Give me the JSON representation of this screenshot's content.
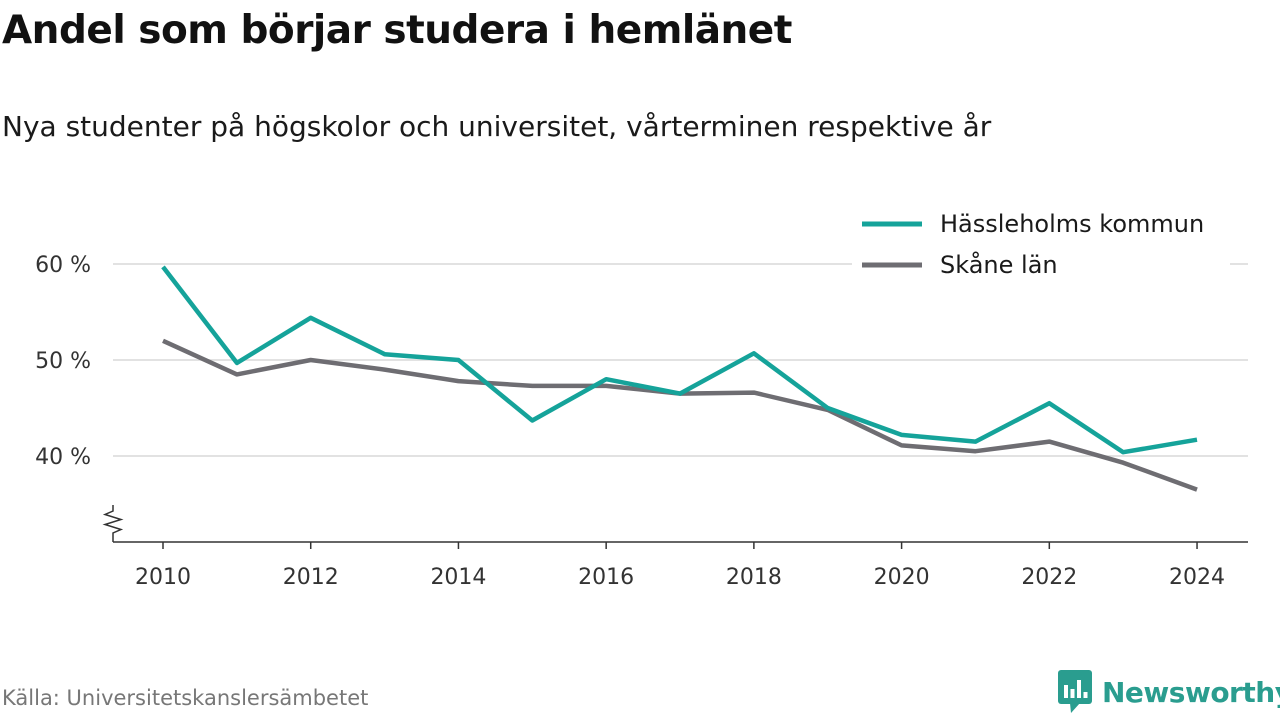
{
  "header": {
    "title": "Andel som börjar studera i hemlänet",
    "subtitle": "Nya studenter på högskolor och universitet, vårterminen respektive år"
  },
  "footer": {
    "source": "Källa: Universitetskanslersämbetet",
    "brand": "Newsworthy",
    "brand_icon": "bar-chart-speech-bubble-icon"
  },
  "colors": {
    "hassleholm": "#15a39a",
    "skane": "#6e6d72",
    "grid": "#d9d9d9",
    "axis": "#333333",
    "brand": "#2a9d8f"
  },
  "chart_data": {
    "type": "line",
    "x": [
      2010,
      2011,
      2012,
      2013,
      2014,
      2015,
      2016,
      2017,
      2018,
      2019,
      2020,
      2021,
      2022,
      2023,
      2024
    ],
    "series": [
      {
        "name": "Hässleholms kommun",
        "color": "#15a39a",
        "values": [
          59.7,
          49.7,
          54.4,
          50.6,
          50.0,
          43.7,
          48.0,
          46.5,
          50.7,
          45.0,
          42.2,
          41.5,
          45.5,
          40.4,
          41.7
        ]
      },
      {
        "name": "Skåne län",
        "color": "#6e6d72",
        "values": [
          52.0,
          48.5,
          50.0,
          49.0,
          47.8,
          47.3,
          47.3,
          46.5,
          46.6,
          44.8,
          41.1,
          40.5,
          41.5,
          39.3,
          36.5
        ]
      }
    ],
    "y_ticks": [
      40,
      50,
      60
    ],
    "y_tick_labels": [
      "40 %",
      "50 %",
      "60 %"
    ],
    "x_ticks": [
      2010,
      2012,
      2014,
      2016,
      2018,
      2020,
      2022,
      2024
    ],
    "x_tick_labels": [
      "2010",
      "2012",
      "2014",
      "2016",
      "2018",
      "2020",
      "2022",
      "2024"
    ],
    "xlim": [
      2009.35,
      2025.4
    ],
    "ylim_visible": [
      33.5,
      64
    ],
    "y_axis_break": true,
    "grid": "horizontal",
    "legend_position": "top-right",
    "xlabel": "",
    "ylabel": ""
  }
}
